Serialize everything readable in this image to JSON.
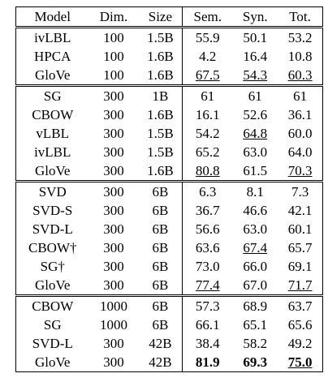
{
  "header": [
    "Model",
    "Dim.",
    "Size",
    "Sem.",
    "Syn.",
    "Tot."
  ],
  "groups": [
    [
      [
        "ivLBL",
        "100",
        "1.5B",
        "55.9",
        "50.1",
        "53.2"
      ],
      [
        "HPCA",
        "100",
        "1.6B",
        "4.2",
        "16.4",
        "10.8"
      ],
      [
        "GloVe",
        "100",
        "1.6B",
        "67.5",
        "54.3",
        "60.3"
      ]
    ],
    [
      [
        "SG",
        "300",
        "1B",
        "61",
        "61",
        "61"
      ],
      [
        "CBOW",
        "300",
        "1.6B",
        "16.1",
        "52.6",
        "36.1"
      ],
      [
        "vLBL",
        "300",
        "1.5B",
        "54.2",
        "64.8",
        "60.0"
      ],
      [
        "ivLBL",
        "300",
        "1.5B",
        "65.2",
        "63.0",
        "64.0"
      ],
      [
        "GloVe",
        "300",
        "1.6B",
        "80.8",
        "61.5",
        "70.3"
      ]
    ],
    [
      [
        "SVD",
        "300",
        "6B",
        "6.3",
        "8.1",
        "7.3"
      ],
      [
        "SVD-S",
        "300",
        "6B",
        "36.7",
        "46.6",
        "42.1"
      ],
      [
        "SVD-L",
        "300",
        "6B",
        "56.6",
        "63.0",
        "60.1"
      ],
      [
        "CBOW†",
        "300",
        "6B",
        "63.6",
        "67.4",
        "65.7"
      ],
      [
        "SG†",
        "300",
        "6B",
        "73.0",
        "66.0",
        "69.1"
      ],
      [
        "GloVe",
        "300",
        "6B",
        "77.4",
        "67.0",
        "71.7"
      ]
    ],
    [
      [
        "CBOW",
        "1000",
        "6B",
        "57.3",
        "68.9",
        "63.7"
      ],
      [
        "SG",
        "1000",
        "6B",
        "66.1",
        "65.1",
        "65.6"
      ],
      [
        "SVD-L",
        "300",
        "42B",
        "38.4",
        "58.2",
        "49.2"
      ],
      [
        "GloVe",
        "300",
        "42B",
        "81.9",
        "69.3",
        "75.0"
      ]
    ]
  ]
}
